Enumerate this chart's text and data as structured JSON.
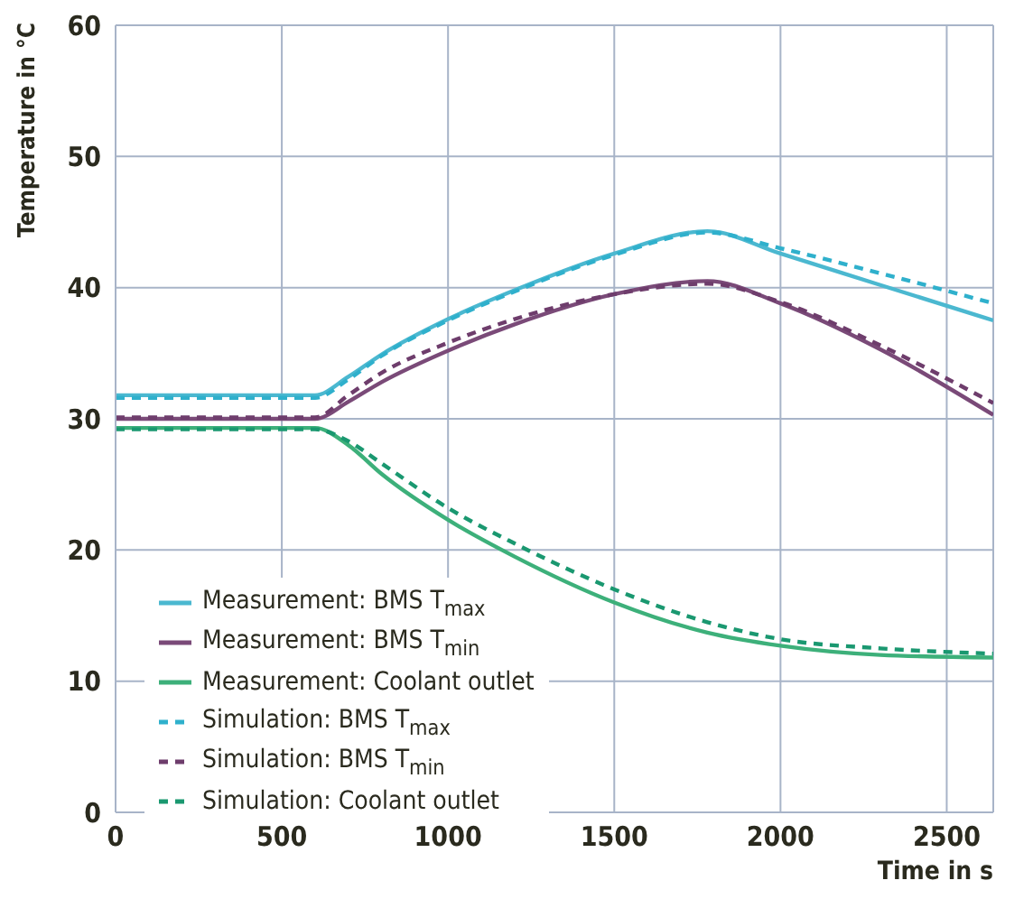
{
  "chart_data": {
    "type": "line",
    "xlabel": "Time in s",
    "ylabel": "Temperature in °C",
    "x": [
      0,
      600,
      700,
      800,
      1000,
      1200,
      1500,
      1780,
      2000,
      2300,
      2640
    ],
    "xlim": [
      0,
      2640
    ],
    "xticks": [
      0,
      500,
      1000,
      1500,
      2000,
      2500
    ],
    "ylim": [
      0,
      60
    ],
    "yticks": [
      0,
      10,
      20,
      30,
      40,
      50,
      60
    ],
    "grid": true,
    "legend": "bottom left",
    "marker": "none",
    "series": [
      {
        "name": "Measurement: BMS T$_{max}$",
        "color": "#4bb8d0",
        "line_style": "solid",
        "values": [
          31.8,
          31.8,
          33.2,
          34.9,
          37.6,
          39.8,
          42.6,
          44.3,
          42.6,
          40.2,
          37.5
        ]
      },
      {
        "name": "Measurement: BMS T$_{min}$",
        "color": "#7a4a78",
        "line_style": "solid",
        "values": [
          30.0,
          30.0,
          31.3,
          32.8,
          35.2,
          37.2,
          39.5,
          40.5,
          38.8,
          35.3,
          30.3
        ]
      },
      {
        "name": "Measurement: Coolant outlet",
        "color": "#3db07a",
        "line_style": "solid",
        "values": [
          29.3,
          29.3,
          28.0,
          25.8,
          22.3,
          19.5,
          16.0,
          13.7,
          12.7,
          12.0,
          11.8
        ]
      },
      {
        "name": "Simulation: BMS T$_{max}$",
        "color": "#2fb0cc",
        "line_style": "dashed",
        "values": [
          31.6,
          31.6,
          33.0,
          34.8,
          37.5,
          39.7,
          42.5,
          44.2,
          43.0,
          41.1,
          38.8
        ]
      },
      {
        "name": "Simulation: BMS T$_{min}$",
        "color": "#6e3d6c",
        "line_style": "dashed",
        "values": [
          30.1,
          30.1,
          31.8,
          33.5,
          35.8,
          37.6,
          39.5,
          40.3,
          38.9,
          35.6,
          31.2
        ]
      },
      {
        "name": "Simulation: Coolant outlet",
        "color": "#1a9870",
        "line_style": "dashed",
        "values": [
          29.2,
          29.2,
          28.3,
          26.6,
          23.2,
          20.5,
          17.0,
          14.5,
          13.2,
          12.5,
          12.1
        ]
      }
    ]
  }
}
